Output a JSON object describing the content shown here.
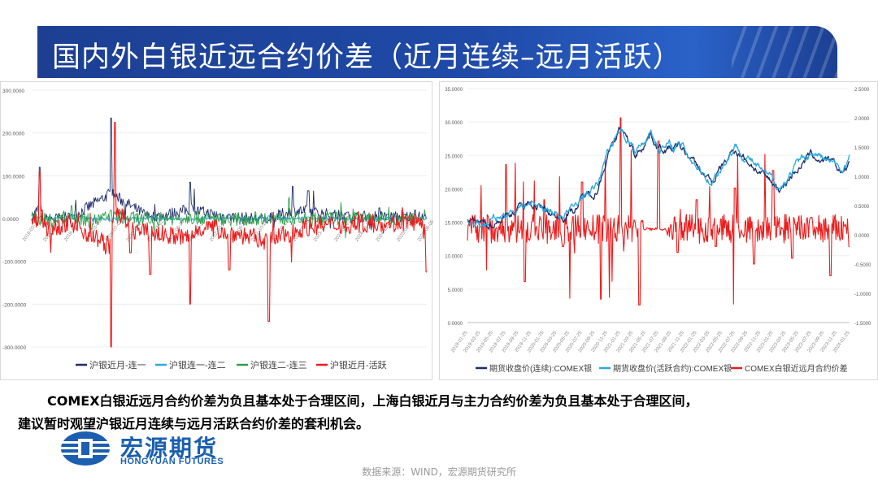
{
  "title": "国内外白银近远合约价差（近月连续–远月活跃）",
  "left_chart": {
    "yticks": [
      "300.0000",
      "200.0000",
      "100.0000",
      "0.0000",
      "-100.0000",
      "-200.0000",
      "-300.0000"
    ],
    "xticks": [
      "2019-03-11",
      "2019-07-10",
      "2019-11-05",
      "2020-03-06",
      "2020-07-03",
      "2020-10-30",
      "2021-03-02",
      "2021-06-29",
      "2021-10-26",
      "2022-02-28",
      "2022-06-27",
      "2022-10-20",
      "2023-02-17",
      "2023-06-15",
      "2023-10-13",
      "2024-02-07",
      "2024-06-05",
      "2024-10-08",
      "2025-02-06",
      "2025-06-05"
    ],
    "legend": [
      "沪银近月-连一",
      "沪银连一-连二",
      "沪银连二-连三",
      "沪银近月-活跃"
    ]
  },
  "right_chart": {
    "yticks_left": [
      "35.0000",
      "30.0000",
      "25.0000",
      "20.0000",
      "15.0000",
      "10.0000",
      "5.0000",
      "0.0000"
    ],
    "yticks_right": [
      "2.5000",
      "2.0000",
      "1.5000",
      "1.0000",
      "0.5000",
      "0.0000",
      "-0.5000",
      "-1.0000",
      "-1.5000"
    ],
    "xticks": [
      "2019-01-25",
      "2019-03-25",
      "2019-05-25",
      "2019-07-25",
      "2019-09-25",
      "2019-11-25",
      "2020-01-25",
      "2020-03-25",
      "2020-05-25",
      "2020-07-25",
      "2020-09-25",
      "2020-11-25",
      "2021-01-25",
      "2021-03-25",
      "2021-05-25",
      "2021-07-25",
      "2021-09-25",
      "2021-11-25",
      "2022-01-25",
      "2022-03-25",
      "2022-05-25",
      "2022-07-25",
      "2022-09-25",
      "2022-11-25",
      "2023-01-25",
      "2023-03-25",
      "2023-05-25",
      "2023-07-25",
      "2023-09-25",
      "2023-11-25",
      "2024-01-25"
    ],
    "legend": [
      "期货收盘价(连续):COMEX银",
      "期货收盘价(活跃合约):COMEX银",
      "COMEX白银近远月合约价差"
    ]
  },
  "note_line1": "COMEX白银近远月合约价差为负且基本处于合理区间，上海白银近月与主力合约价差为负且基本处于合理区间，",
  "note_line2": "建议暂时观望沪银近月连续与远月活跃合约价差的套利机会。",
  "logo": {
    "cn": "宏源期货",
    "en": "HONGYUAN FUTURES"
  },
  "source": "数据来源：WIND，宏源期货研究所",
  "colors": {
    "navy": "#1f2d6b",
    "sky": "#29a8e0",
    "green": "#2ea04a",
    "red": "#ee1c1c",
    "title_bg": "#1f4aa8",
    "logo_blue": "#1a5fb0"
  },
  "chart_data": [
    {
      "type": "line",
      "ylim": [
        -300,
        300
      ],
      "x_range": [
        "2019-03-11",
        "2025-06-05"
      ],
      "series": [
        {
          "name": "沪银近月-连一",
          "x": [
            0,
            0.02,
            0.03,
            0.1,
            0.2,
            0.3,
            0.4,
            0.5,
            0.6,
            0.66,
            0.7,
            0.8,
            0.88,
            0.9,
            0.97,
            1
          ],
          "values": [
            -5,
            120,
            -10,
            10,
            235,
            5,
            85,
            10,
            -5,
            75,
            65,
            15,
            25,
            10,
            20,
            0
          ]
        },
        {
          "name": "沪银连一-连二",
          "x": [
            0,
            0.1,
            0.2,
            0.3,
            0.4,
            0.5,
            0.6,
            0.7,
            0.8,
            0.9,
            1
          ],
          "values": [
            5,
            8,
            -6,
            3,
            -4,
            2,
            -3,
            4,
            -2,
            3,
            0
          ]
        },
        {
          "name": "沪银连二-连三",
          "x": [
            0,
            0.05,
            0.1,
            0.15,
            0.2,
            0.3,
            0.4,
            0.5,
            0.6,
            0.7,
            0.8,
            0.9,
            1
          ],
          "values": [
            8,
            -20,
            30,
            -25,
            20,
            -10,
            10,
            -8,
            6,
            -5,
            4,
            -3,
            2
          ]
        },
        {
          "name": "沪银近月-活跃",
          "x": [
            0,
            0.02,
            0.04,
            0.1,
            0.2,
            0.21,
            0.25,
            0.3,
            0.4,
            0.43,
            0.5,
            0.6,
            0.7,
            0.8,
            0.9,
            0.97,
            1
          ],
          "values": [
            0,
            110,
            -40,
            -20,
            -300,
            225,
            -80,
            -130,
            -200,
            -40,
            -120,
            -240,
            -40,
            -20,
            -10,
            10,
            -125
          ]
        }
      ]
    },
    {
      "type": "line",
      "ylim": [
        0,
        35
      ],
      "y2lim": [
        -1.5,
        2.5
      ],
      "x_range": [
        "2019-01-25",
        "2024-02-25"
      ],
      "series": [
        {
          "name": "期货收盘价(连续):COMEX银",
          "axis": "left",
          "x": [
            0,
            0.05,
            0.1,
            0.16,
            0.2,
            0.24,
            0.28,
            0.3,
            0.34,
            0.36,
            0.4,
            0.44,
            0.48,
            0.5,
            0.56,
            0.62,
            0.64,
            0.7,
            0.74,
            0.78,
            0.82,
            0.86,
            0.9,
            0.94,
            0.98,
            1
          ],
          "values": [
            15,
            14.5,
            16,
            18,
            17,
            15.8,
            17,
            18.5,
            20,
            24,
            29,
            25,
            28.5,
            26,
            26,
            22,
            21,
            26,
            24,
            21.5,
            20,
            23,
            25,
            24,
            22.5,
            23.5
          ]
        },
        {
          "name": "期货收盘价(活跃合约):COMEX银",
          "axis": "left",
          "x": [
            0,
            0.05,
            0.1,
            0.16,
            0.2,
            0.24,
            0.28,
            0.3,
            0.34,
            0.36,
            0.4,
            0.44,
            0.48,
            0.5,
            0.56,
            0.62,
            0.64,
            0.7,
            0.74,
            0.78,
            0.82,
            0.86,
            0.9,
            0.94,
            0.98,
            1
          ],
          "values": [
            15.2,
            14.7,
            16.2,
            18.2,
            17.2,
            16,
            17.2,
            18.8,
            20.3,
            24.4,
            29.4,
            25.4,
            28.9,
            26.3,
            26.3,
            22.3,
            21.3,
            26.4,
            24.4,
            21.8,
            20.3,
            23.3,
            25.4,
            24.3,
            22.8,
            24.8
          ]
        },
        {
          "name": "COMEX白银近远月合约价差",
          "axis": "right",
          "x": [
            0,
            0.05,
            0.1,
            0.15,
            0.2,
            0.25,
            0.3,
            0.35,
            0.4,
            0.45,
            0.5,
            0.55,
            0.6,
            0.65,
            0.7,
            0.75,
            0.8,
            0.85,
            0.9,
            0.95,
            1
          ],
          "values": [
            -0.1,
            -0.6,
            1.2,
            -0.8,
            0.6,
            -0.2,
            0.9,
            -1.1,
            2.0,
            -1.2,
            1.6,
            -0.3,
            0.6,
            -0.2,
            0.8,
            -0.5,
            1.1,
            -0.4,
            0.3,
            -0.7,
            -0.2
          ]
        }
      ]
    }
  ]
}
